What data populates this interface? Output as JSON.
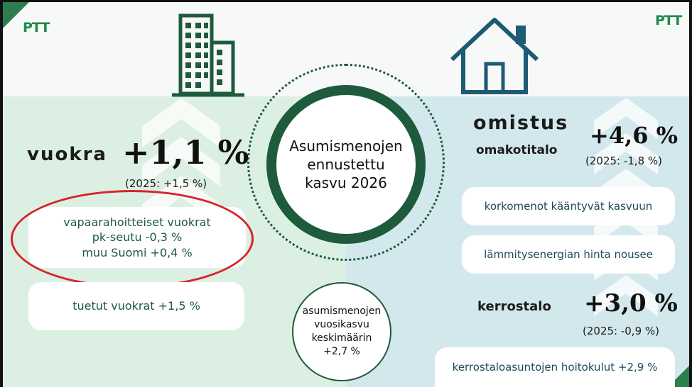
{
  "logo_text": "PTT",
  "center": {
    "title_line1": "Asumismenojen",
    "title_line2": "ennustettu",
    "title_line3": "kasvu 2026"
  },
  "average": {
    "line1": "asumismenojen",
    "line2": "vuosikasvu",
    "line3": "keskimäärin",
    "line4": "+2,7 %"
  },
  "rent": {
    "label": "vuokra",
    "value": "+1,1 %",
    "prev": "(2025: +1,5 %)",
    "free_line1": "vapaarahoitteiset vuokrat",
    "free_line2": "pk-seutu -0,3 %",
    "free_line3": "muu Suomi +0,4 %",
    "subsidized": "tuetut vuokrat +1,5 %"
  },
  "ownership": {
    "label": "omistus",
    "house_label": "omakotitalo",
    "house_value": "+4,6 %",
    "house_prev": "(2025: -1,8 %)",
    "reason1": "korkomenot kääntyvät kasvuun",
    "reason2": "lämmitysenergian hinta nousee",
    "apartment_label": "kerrostalo",
    "apartment_value": "+3,0 %",
    "apartment_prev": "(2025: -0,9 %)",
    "apartment_note": "kerrostaloasuntojen hoitokulut +2,9 %"
  },
  "colors": {
    "green_dark": "#1e5a3c",
    "green_brand": "#2e7d4f",
    "teal_house": "#1d5a73",
    "highlight_red": "#d8232a"
  },
  "icons": [
    "apartment-building-icon",
    "house-icon",
    "up-arrow-chevrons-icon"
  ]
}
